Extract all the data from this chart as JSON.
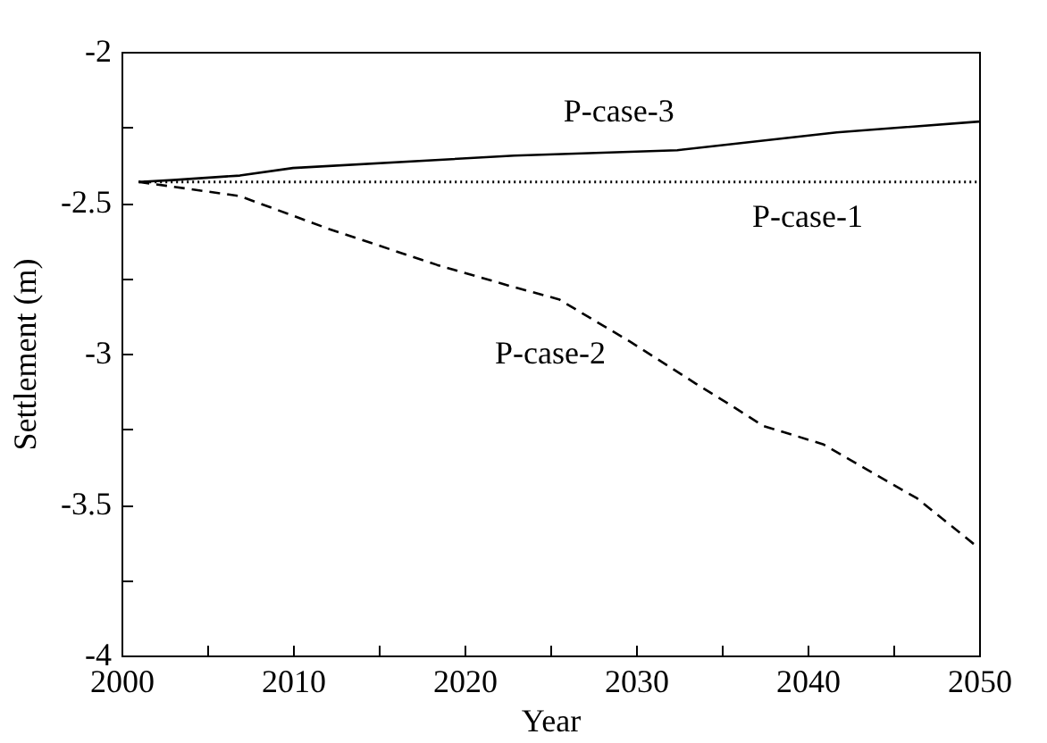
{
  "chart_data": {
    "type": "line",
    "xlabel": "Year",
    "ylabel": "Settlement (m)",
    "xlim": [
      2000,
      2050
    ],
    "ylim": [
      -4,
      -2
    ],
    "xticks": [
      2000,
      {
        "value": 2005,
        "label": null
      },
      2010,
      {
        "value": 2015,
        "label": null
      },
      2020,
      {
        "value": 2025,
        "label": null
      },
      2030,
      {
        "value": 2035,
        "label": null
      },
      2040,
      {
        "value": 2045,
        "label": null
      },
      2050
    ],
    "yticks": [
      -4,
      {
        "value": -3.75,
        "label": null
      },
      -3.5,
      {
        "value": -3.25,
        "label": null
      },
      -3,
      {
        "value": -2.75,
        "label": null
      },
      -2.5,
      {
        "value": -2.25,
        "label": null
      },
      -2
    ],
    "grid": false,
    "series": [
      {
        "name": "P-case-1",
        "color": "#000000",
        "line_style": "dotted",
        "x": [
          2001,
          2050
        ],
        "values": [
          -2.431,
          -2.431
        ]
      },
      {
        "name": "P-case-2",
        "color": "#000000",
        "line_style": "dashed",
        "x": [
          2001,
          2006.9,
          2012.1,
          2018.4,
          2022.6,
          2025.5,
          2029.7,
          2033.5,
          2035.5,
          2037.4,
          2040.9,
          2046.4,
          2050
        ],
        "values": [
          -2.431,
          -2.478,
          -2.587,
          -2.706,
          -2.775,
          -2.82,
          -2.962,
          -3.1,
          -3.17,
          -3.239,
          -3.3,
          -3.48,
          -3.645
        ]
      },
      {
        "name": "P-case-3",
        "color": "#000000",
        "line_style": "solid",
        "x": [
          2001,
          2003,
          2006.9,
          2010,
          2022.9,
          2032.4,
          2041.7,
          2050
        ],
        "values": [
          -2.431,
          -2.425,
          -2.41,
          -2.385,
          -2.344,
          -2.326,
          -2.267,
          -2.231
        ]
      }
    ]
  }
}
